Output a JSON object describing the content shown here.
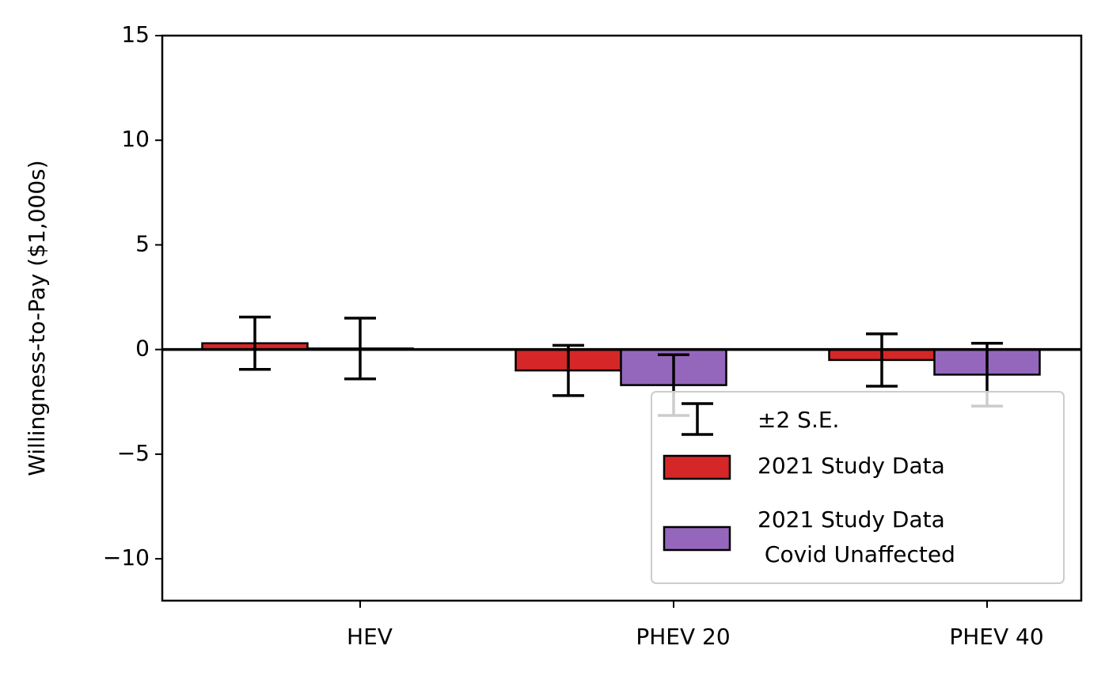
{
  "chart_data": {
    "type": "bar",
    "y_label": "Willingness-to-Pay ($1,000s)",
    "categories": [
      "HEV",
      "PHEV 20",
      "PHEV 40"
    ],
    "errorbar_label": "±2 S.E.",
    "series": [
      {
        "name": "2021 Study Data",
        "color": "#d62728",
        "values": [
          0.3,
          -1.0,
          -0.5
        ],
        "errors": [
          1.25,
          1.2,
          1.25
        ]
      },
      {
        "name": "2021 Study Data\n Covid Unaffected",
        "color": "#9467bd",
        "values": [
          0.05,
          -1.7,
          -1.2
        ],
        "errors": [
          1.45,
          1.45,
          1.5
        ]
      }
    ],
    "ylim": [
      -12,
      15
    ],
    "yticks": [
      {
        "value": -10,
        "label": "−10"
      },
      {
        "value": -5,
        "label": "−5"
      },
      0,
      5,
      10,
      15
    ],
    "zero_line": true,
    "legend": "lower right"
  }
}
